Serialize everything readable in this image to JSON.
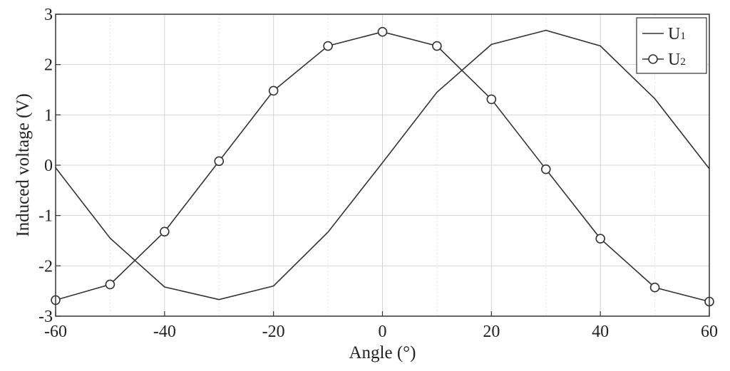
{
  "chart_data": {
    "type": "line",
    "xlabel": "Angle (°)",
    "ylabel": "Induced voltage (V)",
    "xlim": [
      -60,
      60
    ],
    "ylim": [
      -3,
      3
    ],
    "xticks": [
      -60,
      -40,
      -20,
      0,
      20,
      40,
      60
    ],
    "yticks": [
      -3,
      -2,
      -1,
      0,
      1,
      2,
      3
    ],
    "grid": true,
    "legend_position": "top-right",
    "x": [
      -60,
      -50,
      -40,
      -30,
      -20,
      -10,
      0,
      10,
      20,
      30,
      40,
      50,
      60
    ],
    "series": [
      {
        "name": "U1",
        "label_main": "U",
        "label_sub": "1",
        "marker": "none",
        "color": "#333333",
        "values": [
          -0.05,
          -1.45,
          -2.42,
          -2.67,
          -2.4,
          -1.33,
          0.05,
          1.45,
          2.4,
          2.68,
          2.37,
          1.32,
          -0.07
        ]
      },
      {
        "name": "U2",
        "label_main": "U",
        "label_sub": "2",
        "marker": "circle",
        "color": "#333333",
        "values": [
          -2.68,
          -2.37,
          -1.32,
          0.08,
          1.48,
          2.37,
          2.65,
          2.37,
          1.31,
          -0.08,
          -1.46,
          -2.43,
          -2.71
        ]
      }
    ]
  }
}
